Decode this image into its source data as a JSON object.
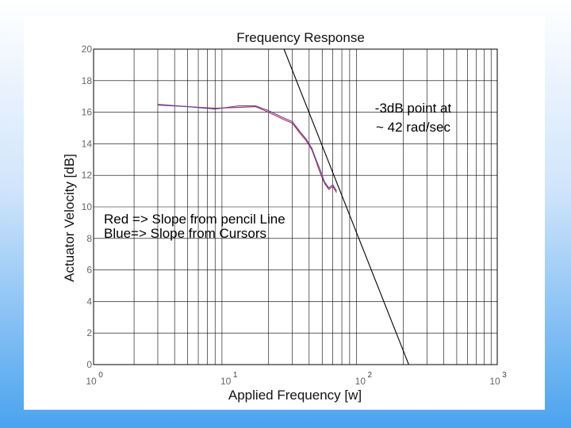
{
  "chart_data": {
    "type": "line",
    "title": "Frequency Response",
    "xlabel": "Applied Frequency [w]",
    "ylabel": "Actuator Velocity [dB]",
    "x_scale": "log",
    "xlim": [
      1,
      1000
    ],
    "ylim": [
      0,
      20
    ],
    "grid": true,
    "x_ticks": [
      {
        "base": "10",
        "exp": "0"
      },
      {
        "base": "10",
        "exp": "1"
      },
      {
        "base": "10",
        "exp": "2"
      },
      {
        "base": "10",
        "exp": "3"
      }
    ],
    "y_ticks": [
      "0",
      "2",
      "4",
      "6",
      "8",
      "10",
      "12",
      "14",
      "16",
      "18",
      "20"
    ],
    "annotations": [
      {
        "line1": "-3dB point at",
        "line2": "~ 42 rad/sec"
      },
      {
        "line1": "Red => Slope from pencil Line",
        "line2": "Blue=> Slope from Cursors"
      }
    ],
    "series": [
      {
        "color": "#b03050",
        "x": [
          3.0,
          5.0,
          8.0,
          12.0,
          16.0,
          20.0,
          25.0,
          30.0,
          34.0,
          38.0,
          42.0,
          45.0,
          48.0,
          52.0,
          56.0,
          60.0,
          64.0
        ],
        "y": [
          16.45,
          16.35,
          16.25,
          16.3,
          16.35,
          16.0,
          15.6,
          15.3,
          14.7,
          14.2,
          13.6,
          12.9,
          12.2,
          11.5,
          11.1,
          11.3,
          10.9
        ]
      },
      {
        "color": "#6040a0",
        "x": [
          3.0,
          5.0,
          8.0,
          12.0,
          16.0,
          20.0,
          25.0,
          30.0,
          34.0,
          38.0,
          42.0,
          45.0,
          48.0,
          52.0,
          56.0,
          60.0,
          64.0
        ],
        "y": [
          16.5,
          16.35,
          16.2,
          16.4,
          16.4,
          16.1,
          15.7,
          15.4,
          14.8,
          14.3,
          13.7,
          13.0,
          12.4,
          11.6,
          11.2,
          11.4,
          11.0
        ]
      },
      {
        "color": "#000000",
        "x": [
          26.0,
          220.0
        ],
        "y": [
          20.0,
          0.0
        ]
      }
    ]
  }
}
